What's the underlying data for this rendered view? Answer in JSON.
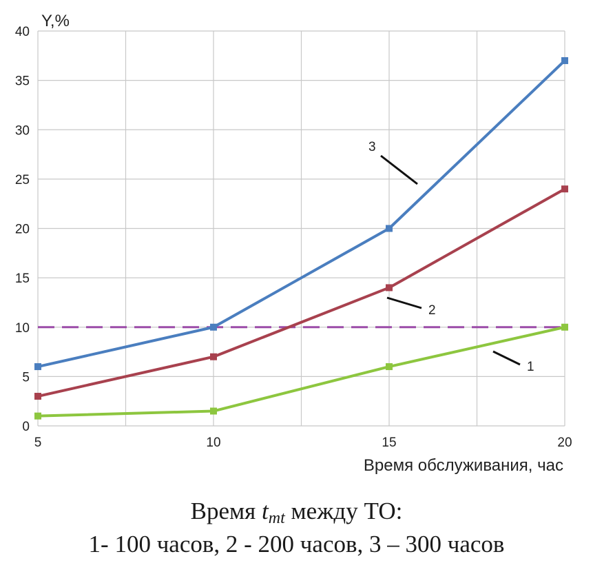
{
  "chart_data": {
    "type": "line",
    "ylabel": "Y,%",
    "xlabel": "Время обслуживания, час",
    "x": [
      5,
      10,
      15,
      20
    ],
    "xlim": [
      5,
      20
    ],
    "ylim": [
      0,
      40
    ],
    "xticks": [
      5,
      10,
      15,
      20
    ],
    "yticks": [
      0,
      5,
      10,
      15,
      20,
      25,
      30,
      35,
      40
    ],
    "grid": true,
    "series": [
      {
        "name": "1",
        "color": "#8dc63f",
        "values": [
          1,
          1.5,
          6,
          10
        ]
      },
      {
        "name": "2",
        "color": "#a8414e",
        "values": [
          3,
          7,
          14,
          24
        ]
      },
      {
        "name": "3",
        "color": "#4a7ebf",
        "values": [
          6,
          10,
          20,
          37
        ]
      }
    ],
    "threshold": {
      "value": 10,
      "color": "#9b4ba8",
      "style": "dashed"
    },
    "callouts": [
      "1",
      "2",
      "3"
    ]
  },
  "caption": {
    "line1_prefix": "Время ",
    "var": "t",
    "var_sub": "mt",
    "line1_suffix": " между ТО:",
    "line2": "1- 100 часов, 2 - 200 часов, 3 – 300 часов"
  }
}
